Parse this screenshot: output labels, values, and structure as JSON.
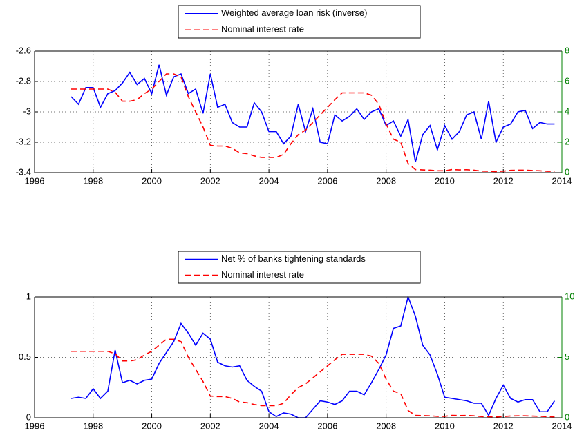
{
  "chart_data": [
    {
      "type": "line",
      "x": [
        1997.25,
        1997.5,
        1997.75,
        1998,
        1998.25,
        1998.5,
        1998.75,
        1999,
        1999.25,
        1999.5,
        1999.75,
        2000,
        2000.25,
        2000.5,
        2000.75,
        2001,
        2001.25,
        2001.5,
        2001.75,
        2002,
        2002.25,
        2002.5,
        2002.75,
        2003,
        2003.25,
        2003.5,
        2003.75,
        2004,
        2004.25,
        2004.5,
        2004.75,
        2005,
        2005.25,
        2005.5,
        2005.75,
        2006,
        2006.25,
        2006.5,
        2006.75,
        2007,
        2007.25,
        2007.5,
        2007.75,
        2008,
        2008.25,
        2008.5,
        2008.75,
        2009,
        2009.25,
        2009.5,
        2009.75,
        2010,
        2010.25,
        2010.5,
        2010.75,
        2011,
        2011.25,
        2011.5,
        2011.75,
        2012,
        2012.25,
        2012.5,
        2012.75,
        2013,
        2013.25,
        2013.5,
        2013.75
      ],
      "series": [
        {
          "name": "Weighted average loan risk (inverse)",
          "color": "#0000ff",
          "dash": "solid",
          "values": [
            -2.9,
            -2.95,
            -2.84,
            -2.84,
            -2.97,
            -2.88,
            -2.86,
            -2.81,
            -2.74,
            -2.82,
            -2.78,
            -2.88,
            -2.69,
            -2.89,
            -2.77,
            -2.75,
            -2.88,
            -2.85,
            -3.01,
            -2.75,
            -2.97,
            -2.95,
            -3.07,
            -3.1,
            -3.1,
            -2.94,
            -3.0,
            -3.13,
            -3.13,
            -3.21,
            -3.16,
            -2.95,
            -3.13,
            -2.98,
            -3.2,
            -3.21,
            -3.02,
            -3.06,
            -3.03,
            -2.98,
            -3.05,
            -3.0,
            -2.98,
            -3.09,
            -3.06,
            -3.16,
            -3.05,
            -3.33,
            -3.15,
            -3.09,
            -3.25,
            -3.09,
            -3.18,
            -3.13,
            -3.02,
            -3.0,
            -3.18,
            -2.93,
            -3.2,
            -3.1,
            -3.08,
            -3.0,
            -2.99,
            -3.11,
            -3.07,
            -3.08,
            -3.08
          ]
        },
        {
          "name": "Nominal interest rate",
          "color": "#ff0000",
          "dash": "dashed",
          "axis": "y2",
          "values": [
            5.5,
            5.5,
            5.5,
            5.5,
            5.5,
            5.5,
            5.3,
            4.7,
            4.7,
            4.8,
            5.2,
            5.5,
            6.0,
            6.5,
            6.5,
            6.3,
            5.0,
            4.0,
            3.0,
            1.8,
            1.75,
            1.75,
            1.6,
            1.3,
            1.25,
            1.1,
            1.0,
            1.0,
            1.0,
            1.2,
            1.9,
            2.5,
            2.8,
            3.3,
            3.8,
            4.3,
            4.8,
            5.25,
            5.25,
            5.25,
            5.25,
            5.1,
            4.5,
            3.2,
            2.2,
            2.0,
            0.6,
            0.2,
            0.18,
            0.16,
            0.12,
            0.12,
            0.2,
            0.18,
            0.19,
            0.16,
            0.1,
            0.09,
            0.07,
            0.1,
            0.15,
            0.16,
            0.16,
            0.14,
            0.12,
            0.09,
            0.08
          ]
        }
      ],
      "xlim": [
        1996,
        2014
      ],
      "xticks": [
        1996,
        1998,
        2000,
        2002,
        2004,
        2006,
        2008,
        2010,
        2012,
        2014
      ],
      "ylim": [
        -3.4,
        -2.6
      ],
      "yticks": [
        -3.4,
        -3.2,
        -3,
        -2.8,
        -2.6
      ],
      "y2lim": [
        0,
        8
      ],
      "y2ticks": [
        0,
        2,
        4,
        6,
        8
      ],
      "y2_color": "#008000",
      "grid": true,
      "legend": "top"
    },
    {
      "type": "line",
      "x": [
        1997.25,
        1997.5,
        1997.75,
        1998,
        1998.25,
        1998.5,
        1998.75,
        1999,
        1999.25,
        1999.5,
        1999.75,
        2000,
        2000.25,
        2000.5,
        2000.75,
        2001,
        2001.25,
        2001.5,
        2001.75,
        2002,
        2002.25,
        2002.5,
        2002.75,
        2003,
        2003.25,
        2003.5,
        2003.75,
        2004,
        2004.25,
        2004.5,
        2004.75,
        2005,
        2005.25,
        2005.5,
        2005.75,
        2006,
        2006.25,
        2006.5,
        2006.75,
        2007,
        2007.25,
        2007.5,
        2007.75,
        2008,
        2008.25,
        2008.5,
        2008.75,
        2009,
        2009.25,
        2009.5,
        2009.75,
        2010,
        2010.25,
        2010.5,
        2010.75,
        2011,
        2011.25,
        2011.5,
        2011.75,
        2012,
        2012.25,
        2012.5,
        2012.75,
        2013,
        2013.25,
        2013.5,
        2013.75
      ],
      "series": [
        {
          "name": "Net % of banks tightening standards",
          "color": "#0000ff",
          "dash": "solid",
          "values": [
            0.16,
            0.17,
            0.16,
            0.24,
            0.16,
            0.22,
            0.56,
            0.29,
            0.31,
            0.28,
            0.31,
            0.32,
            0.45,
            0.54,
            0.63,
            0.78,
            0.7,
            0.6,
            0.7,
            0.65,
            0.46,
            0.43,
            0.42,
            0.43,
            0.31,
            0.26,
            0.22,
            0.05,
            0.01,
            0.04,
            0.03,
            0.0,
            0.0,
            0.07,
            0.14,
            0.13,
            0.11,
            0.14,
            0.22,
            0.22,
            0.19,
            0.29,
            0.4,
            0.52,
            0.74,
            0.76,
            1.0,
            0.84,
            0.6,
            0.52,
            0.36,
            0.17,
            0.16,
            0.15,
            0.14,
            0.12,
            0.12,
            0.02,
            0.16,
            0.27,
            0.16,
            0.13,
            0.15,
            0.15,
            0.05,
            0.05,
            0.14
          ]
        },
        {
          "name": "Nominal interest rate",
          "color": "#ff0000",
          "dash": "dashed",
          "axis": "y2",
          "values": [
            5.5,
            5.5,
            5.5,
            5.5,
            5.5,
            5.5,
            5.3,
            4.7,
            4.7,
            4.8,
            5.2,
            5.5,
            6.0,
            6.5,
            6.5,
            6.3,
            5.0,
            4.0,
            3.0,
            1.8,
            1.75,
            1.75,
            1.6,
            1.3,
            1.25,
            1.1,
            1.0,
            1.0,
            1.0,
            1.2,
            1.9,
            2.5,
            2.8,
            3.3,
            3.8,
            4.3,
            4.8,
            5.25,
            5.25,
            5.25,
            5.25,
            5.1,
            4.5,
            3.2,
            2.2,
            2.0,
            0.6,
            0.2,
            0.18,
            0.16,
            0.12,
            0.12,
            0.2,
            0.18,
            0.19,
            0.16,
            0.1,
            0.09,
            0.07,
            0.1,
            0.15,
            0.16,
            0.16,
            0.14,
            0.12,
            0.09,
            0.08
          ]
        }
      ],
      "xlim": [
        1996,
        2014
      ],
      "xticks": [
        1996,
        1998,
        2000,
        2002,
        2004,
        2006,
        2008,
        2010,
        2012,
        2014
      ],
      "ylim": [
        0,
        1
      ],
      "yticks": [
        0,
        0.5,
        1
      ],
      "y2lim": [
        0,
        10
      ],
      "y2ticks": [
        0,
        5,
        10
      ],
      "y2_color": "#008000",
      "grid": true,
      "legend": "top"
    }
  ]
}
